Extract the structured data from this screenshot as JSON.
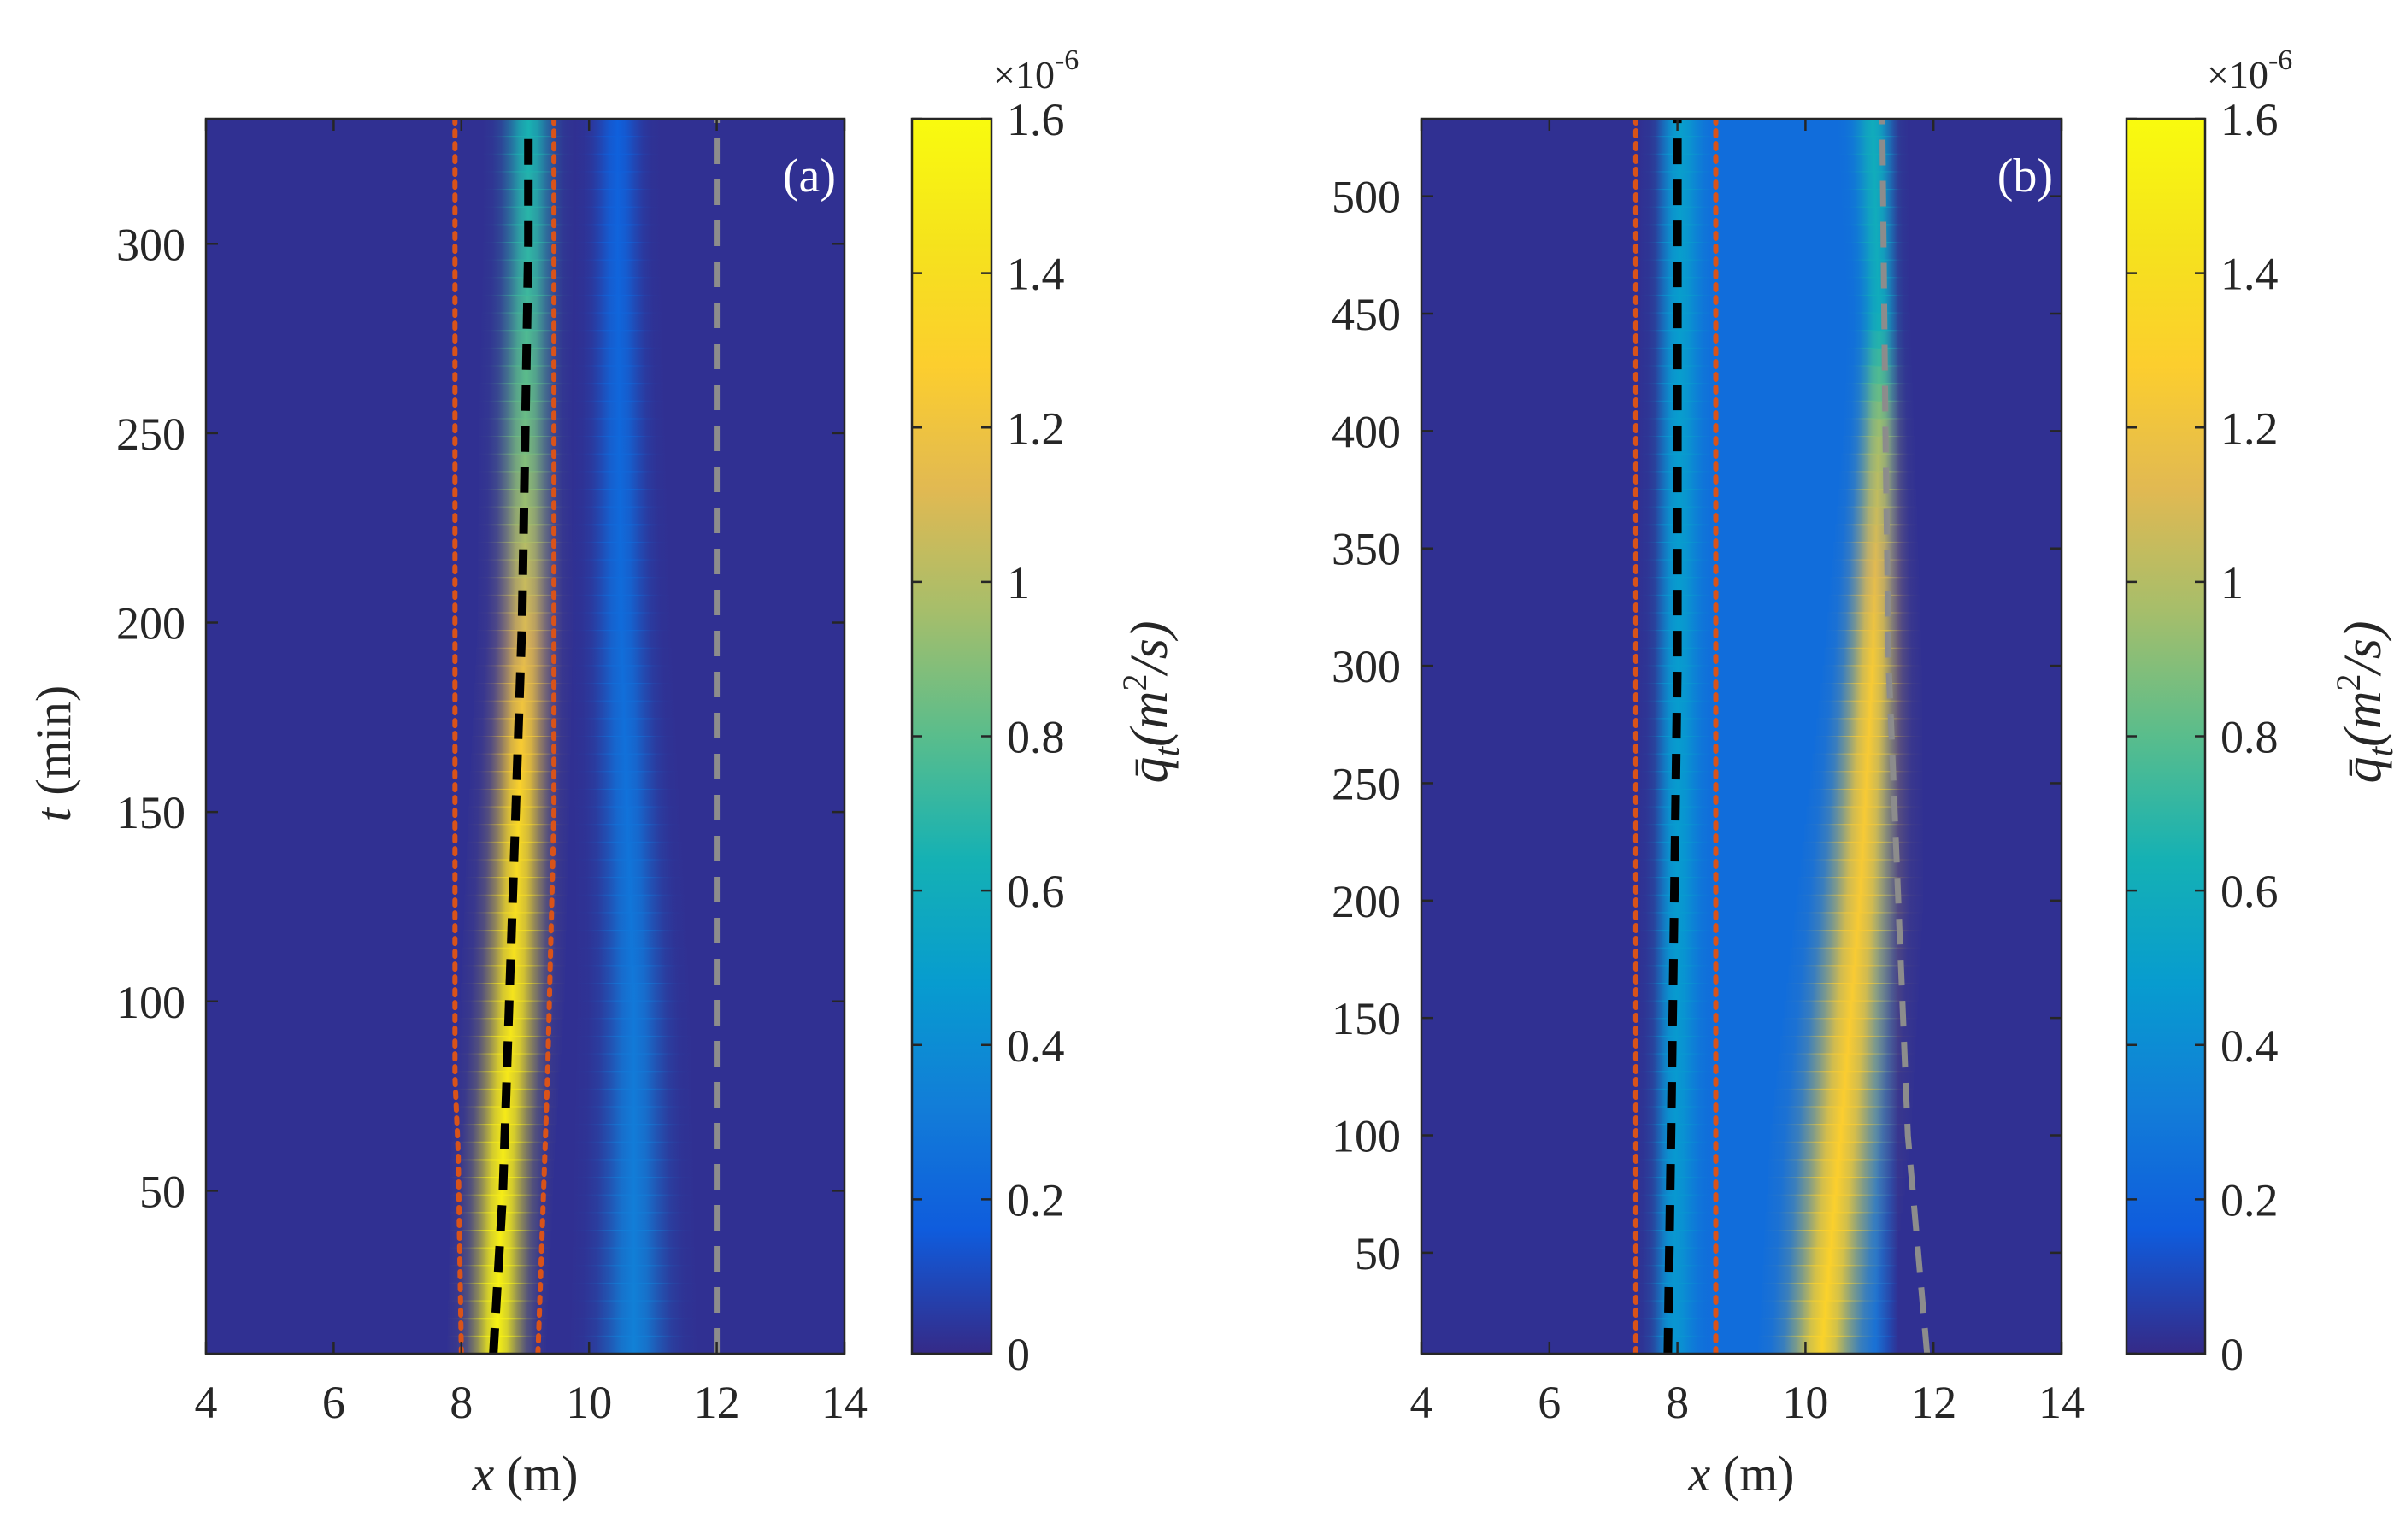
{
  "chart_data": [
    {
      "type": "heatmap",
      "panel_label": "(a)",
      "xlabel_var": "x",
      "xlabel_unit": " (m)",
      "ylabel_var": "t",
      "ylabel_unit": " (min)",
      "xlim": [
        4,
        14
      ],
      "ylim": [
        7,
        333
      ],
      "xticks": [
        4,
        6,
        8,
        10,
        12,
        14
      ],
      "yticks": [
        50,
        100,
        150,
        200,
        250,
        300
      ],
      "colorbar": {
        "label": "q̄_t(m²/s)",
        "label_main": "q̄",
        "label_sub": "t",
        "label_rest": "(m",
        "label_sup": "2",
        "label_end": "/s)",
        "multiplier_base": "×10",
        "multiplier_exp": "-6",
        "ticks": [
          0,
          0.2,
          0.4,
          0.6,
          0.8,
          1,
          1.2,
          1.4,
          1.6
        ],
        "tick_labels": [
          "0",
          "0.2",
          "0.4",
          "0.6",
          "0.8",
          "1",
          "1.2",
          "1.4",
          "1.6"
        ],
        "lim": [
          0,
          1.6
        ]
      },
      "background_value": 0.02,
      "bands": [
        {
          "name": "main ripple band",
          "t": [
            7,
            60,
            100,
            150,
            200,
            250,
            300,
            330
          ],
          "x_center": [
            8.55,
            8.65,
            8.8,
            8.9,
            9.0,
            9.0,
            9.05,
            9.05
          ],
          "width": [
            0.35,
            0.37,
            0.37,
            0.36,
            0.34,
            0.33,
            0.32,
            0.32
          ],
          "peak": [
            1.55,
            1.5,
            1.45,
            1.35,
            1.1,
            0.85,
            0.7,
            0.65
          ]
        },
        {
          "name": "secondary band",
          "t": [
            7,
            100,
            200,
            300,
            330
          ],
          "x_center": [
            10.7,
            10.7,
            10.5,
            10.45,
            10.45
          ],
          "width": [
            0.45,
            0.4,
            0.35,
            0.3,
            0.3
          ],
          "peak": [
            0.34,
            0.3,
            0.24,
            0.2,
            0.18
          ]
        }
      ],
      "lines": [
        {
          "name": "black dashed centreline",
          "style": "dashed",
          "color": "#000000",
          "t": [
            7,
            50,
            100,
            150,
            200,
            250,
            300,
            330
          ],
          "x": [
            8.5,
            8.65,
            8.75,
            8.85,
            8.95,
            9.0,
            9.05,
            9.05
          ]
        },
        {
          "name": "orange dotted left boundary",
          "style": "dotted",
          "color": "#D95319",
          "t": [
            7,
            60,
            80,
            333
          ],
          "x": [
            8.0,
            7.95,
            7.9,
            7.9
          ]
        },
        {
          "name": "orange dotted right boundary",
          "style": "dotted",
          "color": "#D95319",
          "t": [
            7,
            80,
            150,
            333
          ],
          "x": [
            9.2,
            9.35,
            9.45,
            9.45
          ]
        },
        {
          "name": "grey dashed line",
          "style": "dashed",
          "color": "#8C8C8C",
          "t": [
            7,
            333
          ],
          "x": [
            12.0,
            12.0
          ]
        }
      ]
    },
    {
      "type": "heatmap",
      "panel_label": "(b)",
      "xlabel_var": "x",
      "xlabel_unit": " (m)",
      "xlim": [
        4,
        14
      ],
      "ylim": [
        7,
        533
      ],
      "xticks": [
        4,
        6,
        8,
        10,
        12,
        14
      ],
      "yticks": [
        50,
        100,
        150,
        200,
        250,
        300,
        350,
        400,
        450,
        500
      ],
      "colorbar": {
        "label": "q̄_t(m²/s)",
        "label_main": "q̄",
        "label_sub": "t",
        "label_rest": "(m",
        "label_sup": "2",
        "label_end": "/s)",
        "multiplier_base": "×10",
        "multiplier_exp": "-6",
        "ticks": [
          0,
          0.2,
          0.4,
          0.6,
          0.8,
          1,
          1.2,
          1.4,
          1.6
        ],
        "tick_labels": [
          "0",
          "0.2",
          "0.4",
          "0.6",
          "0.8",
          "1",
          "1.2",
          "1.4",
          "1.6"
        ],
        "lim": [
          0,
          1.6
        ]
      },
      "background_value": 0.02,
      "bands": [
        {
          "name": "plateau",
          "t": [
            7,
            533
          ],
          "x_center": [
            9.55,
            9.55
          ],
          "halfwidth": [
            1.55,
            1.55
          ],
          "peak": [
            0.24,
            0.24
          ]
        },
        {
          "name": "left ripple band",
          "t": [
            7,
            200,
            533
          ],
          "x_center": [
            7.95,
            8.0,
            8.05
          ],
          "width": [
            0.28,
            0.28,
            0.28
          ],
          "peak": [
            0.45,
            0.48,
            0.5
          ]
        },
        {
          "name": "diagonal front band",
          "t": [
            7,
            100,
            200,
            300,
            400,
            450,
            533
          ],
          "x_center": [
            10.25,
            10.55,
            10.85,
            11.05,
            11.15,
            11.15,
            11.05
          ],
          "width": [
            0.45,
            0.5,
            0.45,
            0.35,
            0.25,
            0.22,
            0.25
          ],
          "peak": [
            1.32,
            1.28,
            1.25,
            1.25,
            0.95,
            0.6,
            0.6
          ]
        }
      ],
      "lines": [
        {
          "name": "black dashed centreline",
          "style": "dashed",
          "color": "#000000",
          "t": [
            7,
            100,
            200,
            300,
            400,
            500,
            533
          ],
          "x": [
            7.85,
            7.9,
            7.95,
            8.0,
            8.0,
            8.0,
            8.0
          ]
        },
        {
          "name": "orange dotted left boundary",
          "style": "dotted",
          "color": "#D95319",
          "t": [
            7,
            533
          ],
          "x": [
            7.35,
            7.35
          ]
        },
        {
          "name": "orange dotted right boundary",
          "style": "dotted",
          "color": "#D95319",
          "t": [
            7,
            533
          ],
          "x": [
            8.6,
            8.6
          ]
        },
        {
          "name": "grey dashed front line",
          "style": "dashed",
          "color": "#8C8C8C",
          "t": [
            7,
            100,
            200,
            300,
            400,
            533
          ],
          "x": [
            11.9,
            11.6,
            11.45,
            11.3,
            11.25,
            11.2
          ]
        }
      ]
    }
  ]
}
